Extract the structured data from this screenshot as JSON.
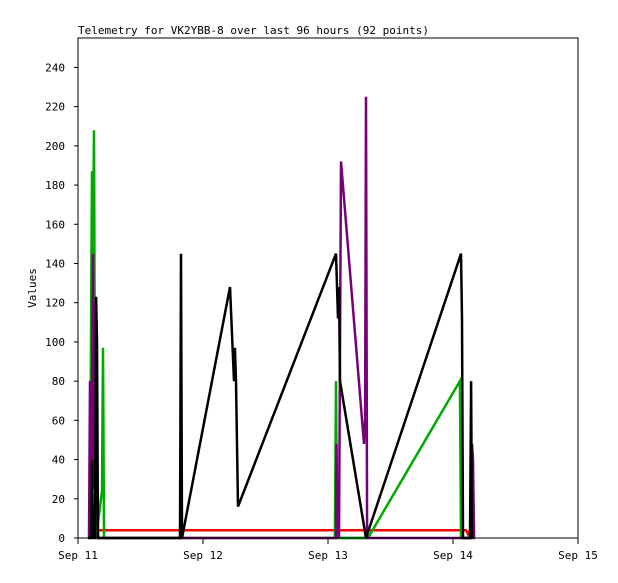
{
  "chart_data": {
    "type": "line",
    "title": "Telemetry for VK2YBB-8 over last 96 hours (92 points)",
    "xlabel": "",
    "ylabel": "Values",
    "ylim": [
      0,
      255
    ],
    "xlim": [
      "Sep 11 00:00",
      "Sep 15 00:00"
    ],
    "x_ticks": [
      "Sep 11",
      "Sep 12",
      "Sep 13",
      "Sep 14",
      "Sep 15"
    ],
    "y_ticks": [
      0,
      20,
      40,
      60,
      80,
      100,
      120,
      140,
      160,
      180,
      200,
      220,
      240
    ],
    "grid": false,
    "legend": "none",
    "series": [
      {
        "color": "#0066cc",
        "points": [
          [
            "Sep 13 02:30",
            0
          ],
          [
            "Sep 13 07:18",
            0
          ]
        ]
      },
      {
        "color": "#ff0000",
        "points": [
          [
            "Sep 11 01:55",
            4
          ],
          [
            "Sep 14 02:30",
            4
          ],
          [
            "Sep 14 02:53",
            2
          ],
          [
            "Sep 14 03:16",
            4
          ],
          [
            "Sep 14 04:13",
            4
          ]
        ]
      },
      {
        "color": "#00aa00",
        "points": [
          [
            "Sep 11 02:18",
            0
          ],
          [
            "Sep 11 02:30",
            104
          ],
          [
            "Sep 11 02:41",
            187
          ],
          [
            "Sep 11 02:53",
            145
          ],
          [
            "Sep 11 03:04",
            208
          ],
          [
            "Sep 11 03:16",
            60
          ],
          [
            "Sep 11 03:28",
            0
          ],
          [
            "Sep 11 04:36",
            24
          ],
          [
            "Sep 11 04:48",
            97
          ],
          [
            "Sep 11 04:59",
            0
          ],
          [
            "Sep 13 01:20",
            0
          ],
          [
            "Sep 13 01:32",
            80
          ],
          [
            "Sep 13 01:44",
            0
          ],
          [
            "Sep 13 07:41",
            0
          ],
          [
            "Sep 14 01:20",
            80
          ],
          [
            "Sep 14 01:32",
            0
          ],
          [
            "Sep 14 03:39",
            0
          ],
          [
            "Sep 14 03:50",
            32
          ],
          [
            "Sep 14 04:02",
            0
          ]
        ]
      },
      {
        "color": "#770077",
        "points": [
          [
            "Sep 11 02:07",
            0
          ],
          [
            "Sep 11 02:12",
            40
          ],
          [
            "Sep 11 02:18",
            80
          ],
          [
            "Sep 11 02:30",
            20
          ],
          [
            "Sep 11 02:41",
            72
          ],
          [
            "Sep 11 02:53",
            145
          ],
          [
            "Sep 11 03:04",
            25
          ],
          [
            "Sep 11 03:16",
            120
          ],
          [
            "Sep 11 03:28",
            73
          ],
          [
            "Sep 11 03:39",
            24
          ],
          [
            "Sep 11 03:50",
            0
          ],
          [
            "Sep 13 01:32",
            0
          ],
          [
            "Sep 13 01:38",
            48
          ],
          [
            "Sep 13 01:44",
            12
          ],
          [
            "Sep 13 02:07",
            0
          ],
          [
            "Sep 13 02:30",
            192
          ],
          [
            "Sep 13 06:55",
            48
          ],
          [
            "Sep 13 07:07",
            60
          ],
          [
            "Sep 13 07:18",
            225
          ],
          [
            "Sep 13 07:30",
            0
          ],
          [
            "Sep 14 03:28",
            0
          ],
          [
            "Sep 14 03:39",
            48
          ],
          [
            "Sep 14 03:50",
            40
          ],
          [
            "Sep 14 04:02",
            0
          ],
          [
            "Sep 14 04:13",
            0
          ]
        ]
      },
      {
        "color": "#000000",
        "points": [
          [
            "Sep 11 01:55",
            0
          ],
          [
            "Sep 11 02:30",
            0
          ],
          [
            "Sep 11 02:41",
            40
          ],
          [
            "Sep 11 02:53",
            0
          ],
          [
            "Sep 11 03:16",
            0
          ],
          [
            "Sep 11 03:28",
            123
          ],
          [
            "Sep 11 03:39",
            100
          ],
          [
            "Sep 11 03:50",
            0
          ],
          [
            "Sep 11 19:35",
            0
          ],
          [
            "Sep 11 19:47",
            145
          ],
          [
            "Sep 11 19:58",
            0
          ],
          [
            "Sep 12 05:11",
            128
          ],
          [
            "Sep 12 05:57",
            80
          ],
          [
            "Sep 12 06:08",
            97
          ],
          [
            "Sep 12 06:20",
            80
          ],
          [
            "Sep 12 06:43",
            16
          ],
          [
            "Sep 13 01:32",
            145
          ],
          [
            "Sep 13 01:55",
            112
          ],
          [
            "Sep 13 02:07",
            128
          ],
          [
            "Sep 13 02:18",
            80
          ],
          [
            "Sep 13 07:18",
            0
          ],
          [
            "Sep 14 01:32",
            145
          ],
          [
            "Sep 14 01:44",
            112
          ],
          [
            "Sep 14 01:55",
            0
          ],
          [
            "Sep 14 03:16",
            0
          ],
          [
            "Sep 14 03:28",
            80
          ],
          [
            "Sep 14 03:39",
            0
          ]
        ]
      }
    ]
  }
}
